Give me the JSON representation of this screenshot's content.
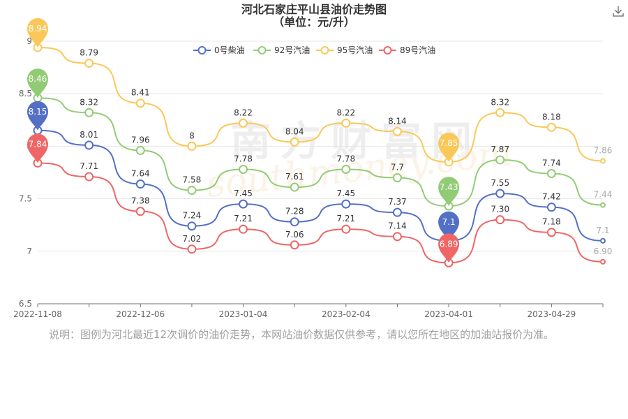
{
  "title": "河北石家庄平山县油价走势图",
  "subtitle": "（单位：元/升）",
  "icons": {
    "download": "download-icon"
  },
  "watermark": {
    "cn": "南方财富网",
    "en": "southmoney.com"
  },
  "note": "说明：图例为河北最近12次调价的油价走势，本网站油价数据仅供参考，请以您所在地区的加油站报价为准。",
  "chart_data": {
    "type": "line",
    "title": "河北石家庄平山县油价走势图",
    "subtitle": "（单位：元/升）",
    "xlabel": "",
    "ylabel": "",
    "x_tick_labels": [
      "2022-11-08",
      "2022-12-06",
      "2023-01-04",
      "2023-02-04",
      "2023-04-01",
      "2023-04-29"
    ],
    "x_tick_index": [
      0,
      2,
      4,
      6,
      8,
      10
    ],
    "y_ticks": [
      6.5,
      7,
      7.5,
      8,
      8.5,
      9
    ],
    "y_tick_labels": [
      "6.5",
      "7",
      "7.5",
      "8",
      "8.5",
      "9"
    ],
    "ylim": [
      6.5,
      9
    ],
    "grid": true,
    "legend_position": "top-center",
    "smooth": true,
    "series": [
      {
        "name": "0号柴油",
        "color": "#5470c6",
        "values": [
          8.15,
          8.01,
          7.64,
          7.24,
          7.45,
          7.28,
          7.45,
          7.37,
          7.1,
          7.55,
          7.42,
          7.1
        ],
        "labels": [
          "",
          "8.01",
          "7.64",
          "7.24",
          "7.45",
          "7.28",
          "7.45",
          "7.37",
          "",
          "7.55",
          "7.42",
          "7.1"
        ],
        "markers": [
          {
            "index": 0,
            "label": "8.15"
          },
          {
            "index": 8,
            "label": "7.1"
          }
        ]
      },
      {
        "name": "92号汽油",
        "color": "#91cc75",
        "values": [
          8.46,
          8.32,
          7.96,
          7.58,
          7.78,
          7.61,
          7.78,
          7.7,
          7.43,
          7.87,
          7.74,
          7.44
        ],
        "labels": [
          "",
          "8.32",
          "7.96",
          "7.58",
          "7.78",
          "7.61",
          "7.78",
          "7.7",
          "",
          "7.87",
          "7.74",
          "7.44"
        ],
        "markers": [
          {
            "index": 0,
            "label": "8.46"
          },
          {
            "index": 8,
            "label": "7.43"
          }
        ]
      },
      {
        "name": "95号汽油",
        "color": "#fac858",
        "values": [
          8.94,
          8.79,
          8.41,
          8.0,
          8.22,
          8.04,
          8.22,
          8.14,
          7.85,
          8.32,
          8.18,
          7.86
        ],
        "labels": [
          "",
          "8.79",
          "8.41",
          "8",
          "8.22",
          "8.04",
          "8.22",
          "8.14",
          "",
          "8.32",
          "8.18",
          "7.86"
        ],
        "markers": [
          {
            "index": 0,
            "label": "8.94"
          },
          {
            "index": 8,
            "label": "7.85"
          }
        ]
      },
      {
        "name": "89号汽油",
        "color": "#ee6666",
        "values": [
          7.84,
          7.71,
          7.38,
          7.02,
          7.21,
          7.06,
          7.21,
          7.14,
          6.89,
          7.3,
          7.18,
          6.9
        ],
        "labels": [
          "",
          "7.71",
          "7.38",
          "7.02",
          "7.21",
          "7.06",
          "7.21",
          "7.14",
          "",
          "7.30",
          "7.18",
          "6.90"
        ],
        "markers": [
          {
            "index": 0,
            "label": "7.84"
          },
          {
            "index": 8,
            "label": "6.89"
          }
        ]
      }
    ]
  }
}
